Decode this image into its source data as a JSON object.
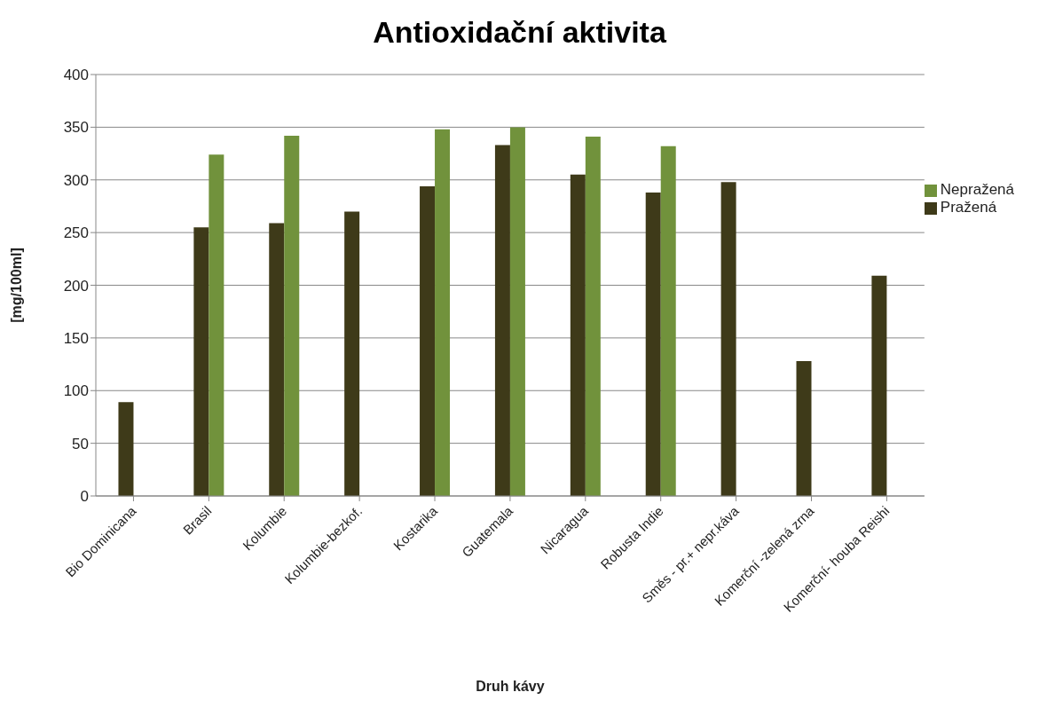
{
  "chart_data": {
    "type": "bar",
    "title": "Antioxidační aktivita",
    "xlabel": "Druh kávy",
    "ylabel": "[mg/100ml]",
    "categories": [
      "Bio Dominicana",
      "Brasil",
      "Kolumbie",
      "Kolumbie-bezkof.",
      "Kostarika",
      "Guatemala",
      "Nicaragua",
      "Robusta Indie",
      "Směs - pr.+ nepr.káva",
      "Komerční -zelená zrna",
      "Komerční- houba Reishi"
    ],
    "series": [
      {
        "name": "Pražená",
        "color": "#3e3a19",
        "values": [
          89,
          255,
          259,
          270,
          294,
          333,
          305,
          288,
          298,
          128,
          209
        ]
      },
      {
        "name": "Nepražená",
        "color": "#71923c",
        "values": [
          null,
          324,
          342,
          null,
          348,
          350,
          341,
          332,
          null,
          null,
          null
        ]
      }
    ],
    "ylim": [
      0,
      400
    ],
    "yticks": [
      0,
      50,
      100,
      150,
      200,
      250,
      300,
      350,
      400
    ],
    "grid": "y",
    "legend": "right"
  }
}
